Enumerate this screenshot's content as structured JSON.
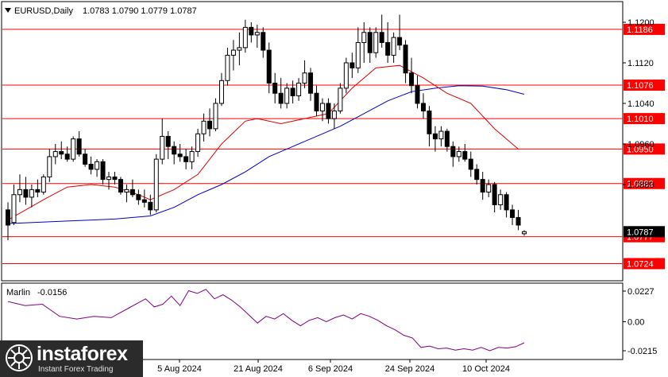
{
  "header": {
    "symbol": "EURUSD,Daily",
    "ohlc": "1.0783 1.0790 1.0779 1.0787",
    "dropdown_icon": "triangle-down-icon"
  },
  "indicator": {
    "name": "Marlin",
    "value": "-0.0156",
    "ticks": [
      "0.0227",
      "0.00",
      "-0.0215"
    ],
    "color": "#800080"
  },
  "current_price_label": "1.0787",
  "price_ticks": [
    "1.1200",
    "1.1120",
    "1.1040",
    "1.0960",
    "1.0880"
  ],
  "x_ticks": [
    "5 Aug 2024",
    "21 Aug 2024",
    "6 Sep 2024",
    "24 Sep 2024",
    "10 Oct 2024"
  ],
  "levels": [
    {
      "label": "1.1186",
      "value": 1.1186
    },
    {
      "label": "1.1076",
      "value": 1.1076
    },
    {
      "label": "1.1010",
      "value": 1.101
    },
    {
      "label": "1.0950",
      "value": 1.095
    },
    {
      "label": "1.0882",
      "value": 1.0882
    },
    {
      "label": "1.0777",
      "value": 1.0777
    },
    {
      "label": "1.0724",
      "value": 1.0724
    }
  ],
  "colors": {
    "level_line": "#ff0000",
    "level_label_bg": "#ff0000",
    "ma_fast": "#e00000",
    "ma_slow": "#0000c8",
    "candle": "#000000"
  },
  "logo": {
    "name": "instaforex",
    "tagline": "Instant Forex Trading"
  },
  "chart_data": {
    "type": "candlestick",
    "title": "EURUSD,Daily",
    "ylim": [
      1.07,
      1.124
    ],
    "candles": [
      [
        1.083,
        1.0845,
        1.077,
        1.08
      ],
      [
        1.0805,
        1.088,
        1.08,
        1.086
      ],
      [
        1.086,
        1.09,
        1.0845,
        1.087
      ],
      [
        1.087,
        1.0895,
        1.084,
        1.0855
      ],
      [
        1.0855,
        1.088,
        1.0835,
        1.087
      ],
      [
        1.087,
        1.089,
        1.0855,
        1.0865
      ],
      [
        1.0865,
        1.09,
        1.086,
        1.0895
      ],
      [
        1.0895,
        1.095,
        1.0885,
        1.0935
      ],
      [
        1.0935,
        1.096,
        1.092,
        1.0945
      ],
      [
        1.0945,
        1.0965,
        1.093,
        1.094
      ],
      [
        1.094,
        1.0955,
        1.0925,
        1.093
      ],
      [
        1.093,
        1.0975,
        1.0925,
        1.097
      ],
      [
        1.097,
        1.0985,
        1.0935,
        1.094
      ],
      [
        1.094,
        1.095,
        1.0915,
        1.092
      ],
      [
        1.092,
        1.0935,
        1.09,
        1.091
      ],
      [
        1.091,
        1.093,
        1.0895,
        1.0925
      ],
      [
        1.0925,
        1.093,
        1.088,
        1.089
      ],
      [
        1.089,
        1.0905,
        1.087,
        1.0895
      ],
      [
        1.0895,
        1.0905,
        1.088,
        1.089
      ],
      [
        1.089,
        1.0895,
        1.086,
        1.0865
      ],
      [
        1.0865,
        1.088,
        1.0845,
        1.087
      ],
      [
        1.087,
        1.089,
        1.0855,
        1.086
      ],
      [
        1.086,
        1.087,
        1.084,
        1.085
      ],
      [
        1.085,
        1.087,
        1.0835,
        1.0845
      ],
      [
        1.0845,
        1.086,
        1.082,
        1.083
      ],
      [
        1.083,
        1.094,
        1.0825,
        1.093
      ],
      [
        1.093,
        1.101,
        1.092,
        1.0975
      ],
      [
        1.0975,
        1.0985,
        1.093,
        1.0955
      ],
      [
        1.0955,
        1.0965,
        1.092,
        1.094
      ],
      [
        1.094,
        1.096,
        1.0925,
        1.0935
      ],
      [
        1.0935,
        1.095,
        1.091,
        1.0925
      ],
      [
        1.0925,
        1.0955,
        1.091,
        1.0945
      ],
      [
        1.0945,
        1.099,
        1.0935,
        1.098
      ],
      [
        1.098,
        1.102,
        1.0965,
        1.1005
      ],
      [
        1.1005,
        1.103,
        1.0975,
        1.099
      ],
      [
        1.099,
        1.105,
        1.0985,
        1.104
      ],
      [
        1.104,
        1.11,
        1.1035,
        1.1085
      ],
      [
        1.1085,
        1.115,
        1.1075,
        1.1135
      ],
      [
        1.1135,
        1.1165,
        1.1105,
        1.1145
      ],
      [
        1.1145,
        1.118,
        1.1115,
        1.115
      ],
      [
        1.115,
        1.1205,
        1.114,
        1.119
      ],
      [
        1.119,
        1.12,
        1.116,
        1.1175
      ],
      [
        1.1175,
        1.1195,
        1.115,
        1.118
      ],
      [
        1.118,
        1.119,
        1.113,
        1.1145
      ],
      [
        1.1145,
        1.116,
        1.106,
        1.108
      ],
      [
        1.108,
        1.11,
        1.104,
        1.106
      ],
      [
        1.106,
        1.109,
        1.103,
        1.104
      ],
      [
        1.104,
        1.108,
        1.103,
        1.107
      ],
      [
        1.107,
        1.1085,
        1.104,
        1.1055
      ],
      [
        1.1055,
        1.109,
        1.1045,
        1.108
      ],
      [
        1.108,
        1.1125,
        1.107,
        1.11
      ],
      [
        1.11,
        1.111,
        1.1045,
        1.106
      ],
      [
        1.106,
        1.1075,
        1.1015,
        1.1025
      ],
      [
        1.1025,
        1.105,
        1.1005,
        1.104
      ],
      [
        1.104,
        1.105,
        1.1,
        1.101
      ],
      [
        1.101,
        1.104,
        1.099,
        1.1025
      ],
      [
        1.1025,
        1.108,
        1.102,
        1.107
      ],
      [
        1.107,
        1.113,
        1.106,
        1.112
      ],
      [
        1.112,
        1.114,
        1.109,
        1.111
      ],
      [
        1.111,
        1.119,
        1.11,
        1.116
      ],
      [
        1.116,
        1.12,
        1.112,
        1.118
      ],
      [
        1.118,
        1.119,
        1.112,
        1.114
      ],
      [
        1.114,
        1.119,
        1.113,
        1.118
      ],
      [
        1.118,
        1.1215,
        1.115,
        1.116
      ],
      [
        1.116,
        1.12,
        1.112,
        1.1135
      ],
      [
        1.1135,
        1.118,
        1.112,
        1.117
      ],
      [
        1.117,
        1.1215,
        1.1145,
        1.1155
      ],
      [
        1.1155,
        1.1165,
        1.108,
        1.11
      ],
      [
        1.11,
        1.113,
        1.106,
        1.1075
      ],
      [
        1.1075,
        1.1095,
        1.103,
        1.104
      ],
      [
        1.104,
        1.106,
        1.101,
        1.1025
      ],
      [
        1.1025,
        1.1035,
        1.0955,
        1.098
      ],
      [
        1.098,
        1.0995,
        1.0945,
        1.097
      ],
      [
        1.097,
        1.0995,
        1.0955,
        1.0985
      ],
      [
        1.0985,
        1.099,
        1.0945,
        1.0955
      ],
      [
        1.0955,
        1.0965,
        1.0915,
        1.0935
      ],
      [
        1.0935,
        1.0955,
        1.0925,
        1.0945
      ],
      [
        1.0945,
        1.096,
        1.0925,
        1.093
      ],
      [
        1.093,
        1.0945,
        1.0895,
        1.091
      ],
      [
        1.091,
        1.092,
        1.088,
        1.089
      ],
      [
        1.089,
        1.0905,
        1.085,
        1.0865
      ],
      [
        1.0865,
        1.089,
        1.0855,
        1.088
      ],
      [
        1.088,
        1.0885,
        1.0825,
        1.084
      ],
      [
        1.084,
        1.087,
        1.083,
        1.086
      ],
      [
        1.086,
        1.0865,
        1.0815,
        1.083
      ],
      [
        1.083,
        1.084,
        1.08,
        1.0815
      ],
      [
        1.0815,
        1.083,
        1.079,
        1.08
      ],
      [
        1.0783,
        1.079,
        1.0779,
        1.0787
      ]
    ],
    "ma_fast": [
      [
        0,
        1.081
      ],
      [
        6,
        1.085
      ],
      [
        10,
        1.0875
      ],
      [
        14,
        1.088
      ],
      [
        18,
        1.0875
      ],
      [
        22,
        1.086
      ],
      [
        24,
        1.085
      ],
      [
        28,
        1.087
      ],
      [
        32,
        1.09
      ],
      [
        36,
        1.096
      ],
      [
        40,
        1.1005
      ],
      [
        42,
        1.101
      ],
      [
        46,
        1.1
      ],
      [
        50,
        1.101
      ],
      [
        54,
        1.102
      ],
      [
        58,
        1.107
      ],
      [
        62,
        1.111
      ],
      [
        66,
        1.1115
      ],
      [
        70,
        1.109
      ],
      [
        74,
        1.106
      ],
      [
        78,
        1.104
      ],
      [
        82,
        1.099
      ],
      [
        86,
        1.095
      ]
    ],
    "ma_slow": [
      [
        0,
        1.0803
      ],
      [
        10,
        1.0808
      ],
      [
        18,
        1.0812
      ],
      [
        24,
        1.0818
      ],
      [
        28,
        1.0835
      ],
      [
        32,
        1.086
      ],
      [
        36,
        1.088
      ],
      [
        40,
        1.0905
      ],
      [
        44,
        1.0935
      ],
      [
        48,
        1.0955
      ],
      [
        52,
        1.0975
      ],
      [
        56,
        1.0995
      ],
      [
        60,
        1.102
      ],
      [
        64,
        1.1045
      ],
      [
        68,
        1.1063
      ],
      [
        72,
        1.107
      ],
      [
        76,
        1.1075
      ],
      [
        80,
        1.1074
      ],
      [
        84,
        1.1067
      ],
      [
        87,
        1.1058
      ]
    ],
    "indicator_series": {
      "name": "Marlin",
      "ylim": [
        -0.025,
        0.026
      ],
      "points": [
        [
          0,
          0.015
        ],
        [
          4,
          0.012
        ],
        [
          8,
          0.013
        ],
        [
          12,
          0.004
        ],
        [
          16,
          0.002
        ],
        [
          20,
          0.004
        ],
        [
          24,
          0.003
        ],
        [
          28,
          0.01
        ],
        [
          32,
          0.017
        ],
        [
          34,
          0.011
        ],
        [
          36,
          0.013
        ],
        [
          38,
          0.019
        ],
        [
          40,
          0.012
        ],
        [
          42,
          0.023
        ],
        [
          44,
          0.021
        ],
        [
          46,
          0.024
        ],
        [
          48,
          0.017
        ],
        [
          50,
          0.02
        ],
        [
          52,
          0.016
        ],
        [
          54,
          0.011
        ],
        [
          56,
          0.005
        ],
        [
          58,
          -0.001
        ],
        [
          60,
          0.004
        ],
        [
          62,
          0.002
        ],
        [
          64,
          0.006
        ],
        [
          66,
          0.001
        ],
        [
          68,
          -0.003
        ],
        [
          70,
          0.001
        ],
        [
          72,
          0.003
        ],
        [
          74,
          0.0
        ],
        [
          76,
          0.003
        ],
        [
          78,
          0.005
        ],
        [
          80,
          0.002
        ],
        [
          82,
          0.006
        ],
        [
          84,
          0.004
        ],
        [
          86,
          0.001
        ],
        [
          88,
          -0.003
        ],
        [
          90,
          -0.006
        ],
        [
          92,
          -0.01
        ],
        [
          94,
          -0.012
        ],
        [
          96,
          -0.019
        ],
        [
          98,
          -0.018
        ],
        [
          100,
          -0.02
        ],
        [
          102,
          -0.0195
        ],
        [
          104,
          -0.021
        ],
        [
          106,
          -0.02
        ],
        [
          108,
          -0.021
        ],
        [
          110,
          -0.019
        ],
        [
          112,
          -0.0215
        ],
        [
          114,
          -0.019
        ],
        [
          116,
          -0.0195
        ],
        [
          118,
          -0.0185
        ],
        [
          120,
          -0.0156
        ]
      ]
    }
  }
}
